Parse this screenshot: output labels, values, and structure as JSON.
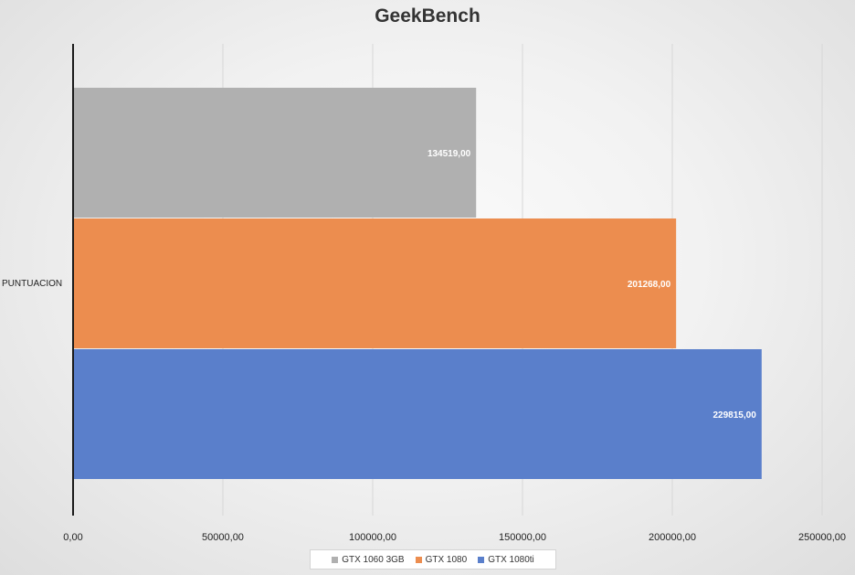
{
  "colors": {
    "GTX 1060 3GB": "#b0b0b0",
    "GTX 1080": "#ec8d4f",
    "GTX 1080ti": "#5a7fcb",
    "grid": "#d7d7d7",
    "axis": "#1a1a1a"
  },
  "chart_data": {
    "type": "bar",
    "orientation": "horizontal",
    "title": "GeekBench",
    "categories": [
      "PUNTUACION"
    ],
    "series": [
      {
        "name": "GTX 1060 3GB",
        "values": [
          134519
        ],
        "label": "134519,00"
      },
      {
        "name": "GTX 1080",
        "values": [
          201268
        ],
        "label": "201268,00"
      },
      {
        "name": "GTX 1080ti",
        "values": [
          229815
        ],
        "label": "229815,00"
      }
    ],
    "xlim": [
      0,
      250000
    ],
    "xticks": [
      0,
      50000,
      100000,
      150000,
      200000,
      250000
    ],
    "xtick_labels": [
      "0,00",
      "50000,00",
      "100000,00",
      "150000,00",
      "200000,00",
      "250000,00"
    ],
    "grid": true,
    "legend": "bottom",
    "xlabel": "",
    "ylabel": ""
  }
}
